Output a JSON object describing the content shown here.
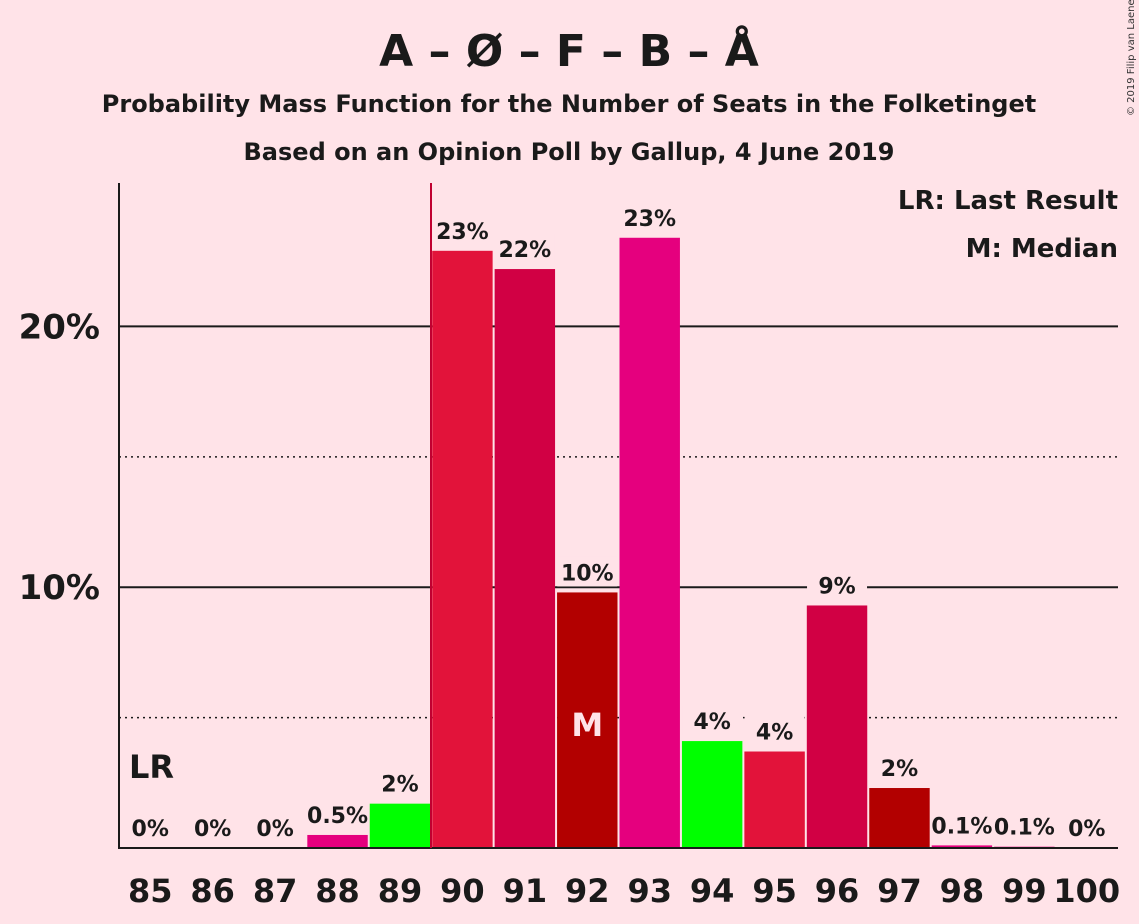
{
  "title": "A – Ø – F – B – Å",
  "subtitle1": "Probability Mass Function for the Number of Seats in the Folketinget",
  "subtitle2": "Based on an Opinion Poll by Gallup, 4 June 2019",
  "copyright": "© 2019 Filip van Laenen",
  "legend": {
    "lr": "LR: Last Result",
    "median": "M: Median"
  },
  "lr_label": "LR",
  "median_label": "M",
  "colors": {
    "background": "#FFE3E8",
    "bars": [
      "#E5007E",
      "#E5007E",
      "#E5007E",
      "#E5007E",
      "#00FF00",
      "#E2133A",
      "#D10044",
      "#B20000",
      "#E5007E",
      "#00FF00",
      "#E2133A",
      "#D10044",
      "#B20000",
      "#E5007E",
      "#E5007E",
      "#E5007E"
    ],
    "lr_line": "#C00030"
  },
  "chart_data": {
    "type": "bar",
    "categories": [
      "85",
      "86",
      "87",
      "88",
      "89",
      "90",
      "91",
      "92",
      "93",
      "94",
      "95",
      "96",
      "97",
      "98",
      "99",
      "100"
    ],
    "values": [
      0,
      0,
      0,
      0.5,
      1.7,
      22.9,
      22.2,
      9.8,
      23.4,
      4.1,
      3.7,
      9.3,
      2.3,
      0.1,
      0.05,
      0
    ],
    "labels": [
      "0%",
      "0%",
      "0%",
      "0.5%",
      "2%",
      "23%",
      "22%",
      "10%",
      "23%",
      "4%",
      "4%",
      "9%",
      "2%",
      "0.1%",
      "0.1%",
      "0%"
    ],
    "yticks": [
      {
        "value": 10,
        "label": "10%"
      },
      {
        "value": 20,
        "label": "20%"
      }
    ],
    "dotted_gridlines": [
      5,
      15
    ],
    "ylim": [
      0,
      25.5
    ],
    "last_result": "89.5",
    "median": "92",
    "legend_position": "top-right"
  }
}
